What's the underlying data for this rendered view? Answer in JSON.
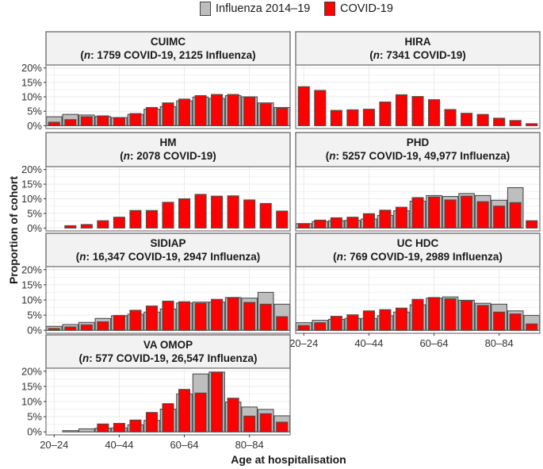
{
  "chart_data": {
    "type": "bar",
    "title": "",
    "xlabel": "Age at hospitalisation",
    "ylabel": "Proportion of cohort",
    "ylim": [
      0,
      20
    ],
    "y_ticks": [
      "0%",
      "5%",
      "10%",
      "15%",
      "20%"
    ],
    "y_tick_values": [
      0,
      5,
      10,
      15,
      20
    ],
    "x_tick_labels": [
      "20–24",
      "40–44",
      "60–64",
      "80–84"
    ],
    "x_tick_indices": [
      0,
      4,
      8,
      12
    ],
    "categories": [
      "20–24",
      "25–29",
      "30–34",
      "35–39",
      "40–44",
      "45–49",
      "50–54",
      "55–59",
      "60–64",
      "65–69",
      "70–74",
      "75–79",
      "80–84",
      "85–89",
      "90+"
    ],
    "grid": true,
    "legend_position": "top",
    "legend": [
      {
        "name": "Influenza 2014–19",
        "color": "#bebebe"
      },
      {
        "name": "COVID-19",
        "color": "#ff0000"
      }
    ],
    "panels": [
      {
        "name": "CUIMC",
        "subtitle_n": "n",
        "subtitle_rest": ": 1759 COVID-19, 2125 Influenza)",
        "influenza": [
          3.1,
          3.9,
          3.7,
          3.2,
          2.8,
          3.9,
          5.7,
          6.6,
          8.6,
          9.9,
          9.4,
          10.4,
          10.0,
          7.9,
          6.3
        ],
        "covid": [
          1.2,
          2.1,
          3.1,
          3.4,
          2.8,
          4.2,
          6.3,
          7.9,
          9.2,
          10.4,
          10.8,
          10.8,
          9.9,
          7.6,
          6.0
        ]
      },
      {
        "name": "HIRA",
        "subtitle_n": "n",
        "subtitle_rest": ": 7341 COVID-19)",
        "influenza": null,
        "covid": [
          13.5,
          12.2,
          5.3,
          5.5,
          5.7,
          8.2,
          10.7,
          10.1,
          9.0,
          5.6,
          4.3,
          3.9,
          2.6,
          1.8,
          0.7
        ]
      },
      {
        "name": "HM",
        "subtitle_n": "n",
        "subtitle_rest": ": 2078 COVID-19)",
        "influenza": null,
        "covid": [
          null,
          0.8,
          1.2,
          2.5,
          3.7,
          6.0,
          6.0,
          8.8,
          10.0,
          11.5,
          10.9,
          11.0,
          9.6,
          8.4,
          5.8
        ]
      },
      {
        "name": "PHD",
        "subtitle_n": "n",
        "subtitle_rest": ": 5257 COVID-19, 49,977 Influenza)",
        "influenza": [
          1.5,
          2.2,
          2.5,
          2.6,
          3.1,
          4.3,
          5.9,
          9.2,
          11.1,
          10.8,
          11.8,
          11.1,
          9.5,
          13.8,
          0
        ],
        "covid": [
          1.5,
          2.7,
          3.5,
          3.7,
          4.9,
          6.1,
          7.1,
          10.4,
          10.6,
          9.6,
          10.9,
          9.0,
          7.5,
          8.7,
          2.5
        ]
      },
      {
        "name": "SIDIAP",
        "subtitle_n": "n",
        "subtitle_rest": ": 16,347 COVID-19, 2947 Influenza)",
        "influenza": [
          1.3,
          1.9,
          2.6,
          3.9,
          4.8,
          5.3,
          6.0,
          7.0,
          9.0,
          9.3,
          9.3,
          10.8,
          10.6,
          12.5,
          8.6
        ],
        "covid": [
          0.6,
          1.1,
          1.8,
          2.8,
          4.9,
          6.6,
          8.0,
          9.6,
          9.4,
          8.9,
          10.2,
          10.8,
          9.2,
          8.6,
          4.5
        ]
      },
      {
        "name": "UC HDC",
        "subtitle_n": "n",
        "subtitle_rest": ": 769 COVID-19, 2989 Influenza)",
        "influenza": [
          2.5,
          3.3,
          3.6,
          3.9,
          3.9,
          4.8,
          6.0,
          8.4,
          10.6,
          11.0,
          9.9,
          8.9,
          8.6,
          6.4,
          4.9
        ],
        "covid": [
          1.6,
          2.5,
          4.6,
          5.1,
          6.4,
          6.8,
          7.3,
          10.2,
          10.8,
          10.4,
          9.7,
          8.2,
          6.0,
          5.4,
          2.1
        ]
      },
      {
        "name": "VA OMOP",
        "subtitle_n": "n",
        "subtitle_rest": ": 577 COVID-19, 26,547 Influenza)",
        "influenza": [
          0,
          0.4,
          1.0,
          1.2,
          1.3,
          2.3,
          3.8,
          7.5,
          12.5,
          19.1,
          19.7,
          9.8,
          8.2,
          7.4,
          5.3
        ],
        "covid": [
          0,
          0,
          0,
          2.6,
          2.8,
          3.9,
          6.4,
          9.3,
          14.0,
          12.8,
          19.7,
          11.1,
          5.2,
          6.0,
          3.2
        ]
      }
    ]
  },
  "colors": {
    "influenza_fill": "#bebebe",
    "covid_fill": "#ff0000",
    "bar_stroke": "#4d4d4d",
    "strip_fill": "#f2f2f2",
    "strip_border": "#666666",
    "panel_border": "#7f7f7f",
    "grid": "#ebebeb"
  },
  "legend": {
    "influenza_label": "Influenza 2014–19",
    "covid_label": "COVID-19"
  }
}
